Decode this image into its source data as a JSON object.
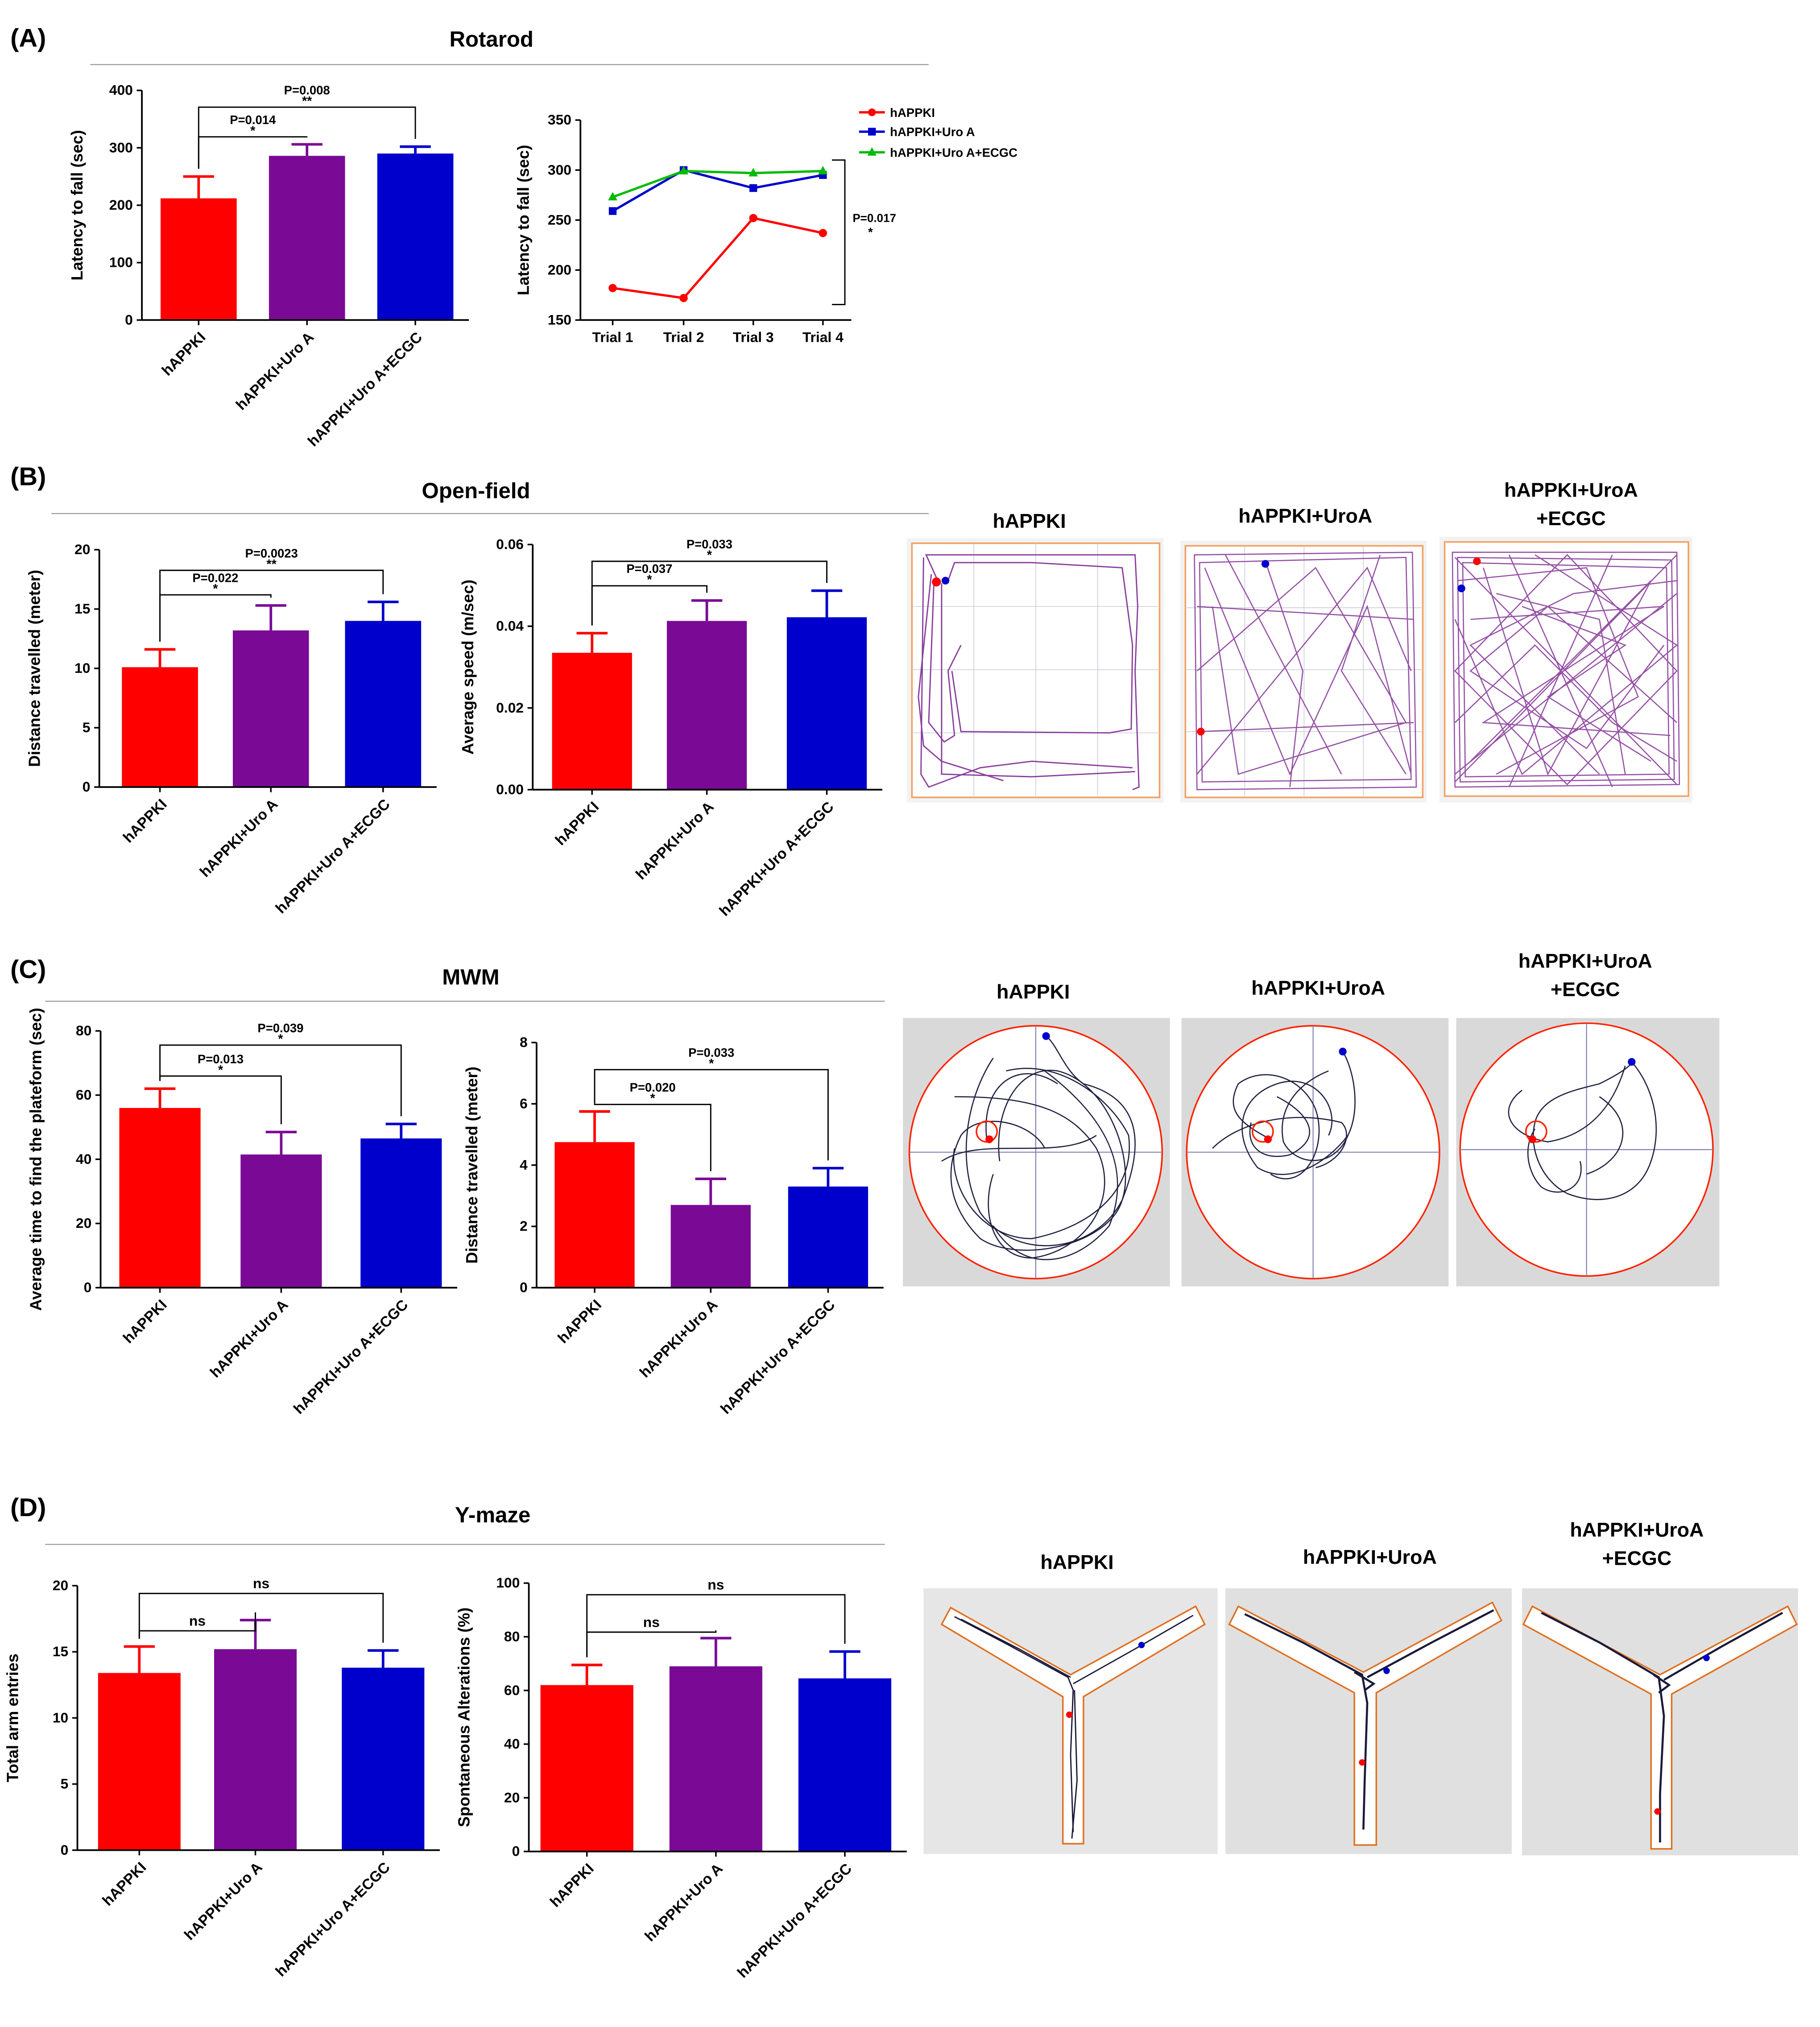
{
  "panels": {
    "A": {
      "label": "(A)",
      "title": "Rotarod"
    },
    "B": {
      "label": "(B)",
      "title": "Open-field"
    },
    "C": {
      "label": "(C)",
      "title": "MWM"
    },
    "D": {
      "label": "(D)",
      "title": "Y-maze"
    }
  },
  "track_titles": {
    "open_field": [
      "hAPPKI",
      "hAPPKI+UroA",
      "hAPPKI+UroA",
      "+ECGC"
    ],
    "mwm": [
      "hAPPKI",
      "hAPPKI+UroA",
      "hAPPKI+UroA",
      "+ECGC"
    ],
    "ymaze": [
      "hAPPKI",
      "hAPPKI+UroA",
      "hAPPKI+UroA",
      "+ECGC"
    ]
  },
  "colors": {
    "red": "#ff0000",
    "purple": "#7a0a96",
    "blue": "#0000cc",
    "green": "#00bb00",
    "track_purple": "#8a3f9c",
    "arena_orange": "#f2a060"
  },
  "chart_data": [
    {
      "id": "A1",
      "type": "bar",
      "panel": "A",
      "categories": [
        "hAPPKI",
        "hAPPKI+Uro A",
        "hAPPKI+Uro A+ECGC"
      ],
      "values": [
        212,
        286,
        290
      ],
      "errors": [
        38,
        20,
        12
      ],
      "ylabel": "Latency to fall (sec)",
      "ylim": [
        0,
        400
      ],
      "yticks": [
        "0",
        "100",
        "200",
        "300",
        "400"
      ],
      "annotations": [
        {
          "text": "P=0.014",
          "stars": "*",
          "from": 0,
          "to": 1
        },
        {
          "text": "P=0.008",
          "stars": "**",
          "from": 0,
          "to": 2
        }
      ]
    },
    {
      "id": "A2",
      "type": "line",
      "panel": "A",
      "categories": [
        "Trial 1",
        "Trial 2",
        "Trial 3",
        "Trial 4"
      ],
      "series": [
        {
          "name": "hAPPKI",
          "values": [
            182,
            172,
            252,
            237
          ]
        },
        {
          "name": "hAPPKI+Uro A",
          "values": [
            259,
            300,
            282,
            295
          ]
        },
        {
          "name": "hAPPKI+Uro A+ECGC",
          "values": [
            273,
            299,
            297,
            299
          ]
        }
      ],
      "ylabel": "Latency to fall (sec)",
      "ylim": [
        150,
        350
      ],
      "yticks": [
        "150",
        "200",
        "250",
        "300",
        "350"
      ],
      "annotation": {
        "text": "P=0.017",
        "stars": "*"
      }
    },
    {
      "id": "B1",
      "type": "bar",
      "panel": "B",
      "categories": [
        "hAPPKI",
        "hAPPKI+Uro A",
        "hAPPKI+Uro A+ECGC"
      ],
      "values": [
        10.1,
        13.2,
        14.0
      ],
      "errors": [
        1.5,
        2.1,
        1.6
      ],
      "ylabel": "Distance travelled (meter)",
      "ylim": [
        0,
        20
      ],
      "yticks": [
        "0",
        "5",
        "10",
        "15",
        "20"
      ],
      "annotations": [
        {
          "text": "P=0.022",
          "stars": "*",
          "from": 0,
          "to": 1
        },
        {
          "text": "P=0.0023",
          "stars": "**",
          "from": 0,
          "to": 2
        }
      ]
    },
    {
      "id": "B2",
      "type": "bar",
      "panel": "B",
      "categories": [
        "hAPPKI",
        "hAPPKI+Uro A",
        "hAPPKI+Uro A+ECGC"
      ],
      "values": [
        0.0335,
        0.0413,
        0.0422
      ],
      "errors": [
        0.0048,
        0.005,
        0.0065
      ],
      "ylabel": "Average speed (m/sec)",
      "ylim": [
        0,
        0.06
      ],
      "yticks": [
        "0.00",
        "0.02",
        "0.04",
        "0.06"
      ],
      "annotations": [
        {
          "text": "P=0.037",
          "stars": "*",
          "from": 0,
          "to": 1
        },
        {
          "text": "P=0.033",
          "stars": "*",
          "from": 0,
          "to": 2
        }
      ]
    },
    {
      "id": "C1",
      "type": "bar",
      "panel": "C",
      "categories": [
        "hAPPKI",
        "hAPPKI+Uro A",
        "hAPPKI+Uro A+ECGC"
      ],
      "values": [
        56,
        41.5,
        46.5
      ],
      "errors": [
        6,
        7,
        4.5
      ],
      "ylabel": "Average time to find the plateform (sec)",
      "ylim": [
        0,
        80
      ],
      "yticks": [
        "0",
        "20",
        "40",
        "60",
        "80"
      ],
      "annotations": [
        {
          "text": "P=0.013",
          "stars": "*",
          "from": 0,
          "to": 1
        },
        {
          "text": "P=0.039",
          "stars": "*",
          "from": 0,
          "to": 2
        }
      ]
    },
    {
      "id": "C2",
      "type": "bar",
      "panel": "C",
      "categories": [
        "hAPPKI",
        "hAPPKI+Uro A",
        "hAPPKI+Uro A+ECGC"
      ],
      "values": [
        4.75,
        2.7,
        3.3
      ],
      "errors": [
        1.0,
        0.85,
        0.6
      ],
      "ylabel": "Distance travelled (meter)",
      "ylim": [
        0,
        8
      ],
      "yticks": [
        "0",
        "2",
        "4",
        "6",
        "8"
      ],
      "annotations": [
        {
          "text": "P=0.020",
          "stars": "*",
          "from": 0,
          "to": 1
        },
        {
          "text": "P=0.033",
          "stars": "*",
          "from": 0,
          "to": 2
        }
      ]
    },
    {
      "id": "D1",
      "type": "bar",
      "panel": "D",
      "categories": [
        "hAPPKI",
        "hAPPKI+Uro A",
        "hAPPKI+Uro A+ECGC"
      ],
      "values": [
        13.4,
        15.2,
        13.8
      ],
      "errors": [
        2.0,
        2.2,
        1.3
      ],
      "ylabel": "Total arm entries",
      "ylim": [
        0,
        20
      ],
      "yticks": [
        "0",
        "5",
        "10",
        "15",
        "20"
      ],
      "annotations": [
        {
          "text": "ns",
          "stars": "",
          "from": 0,
          "to": 1
        },
        {
          "text": "ns",
          "stars": "",
          "from": 0,
          "to": 2
        }
      ]
    },
    {
      "id": "D2",
      "type": "bar",
      "panel": "D",
      "categories": [
        "hAPPKI",
        "hAPPKI+Uro A",
        "hAPPKI+Uro A+ECGC"
      ],
      "values": [
        62,
        69,
        64.5
      ],
      "errors": [
        7.5,
        10.5,
        10
      ],
      "ylabel": "Spontaneous Alterations (%)",
      "ylim": [
        0,
        100
      ],
      "yticks": [
        "0",
        "20",
        "40",
        "60",
        "80",
        "100"
      ],
      "annotations": [
        {
          "text": "ns",
          "stars": "",
          "from": 0,
          "to": 1
        },
        {
          "text": "ns",
          "stars": "",
          "from": 0,
          "to": 2
        }
      ]
    }
  ]
}
